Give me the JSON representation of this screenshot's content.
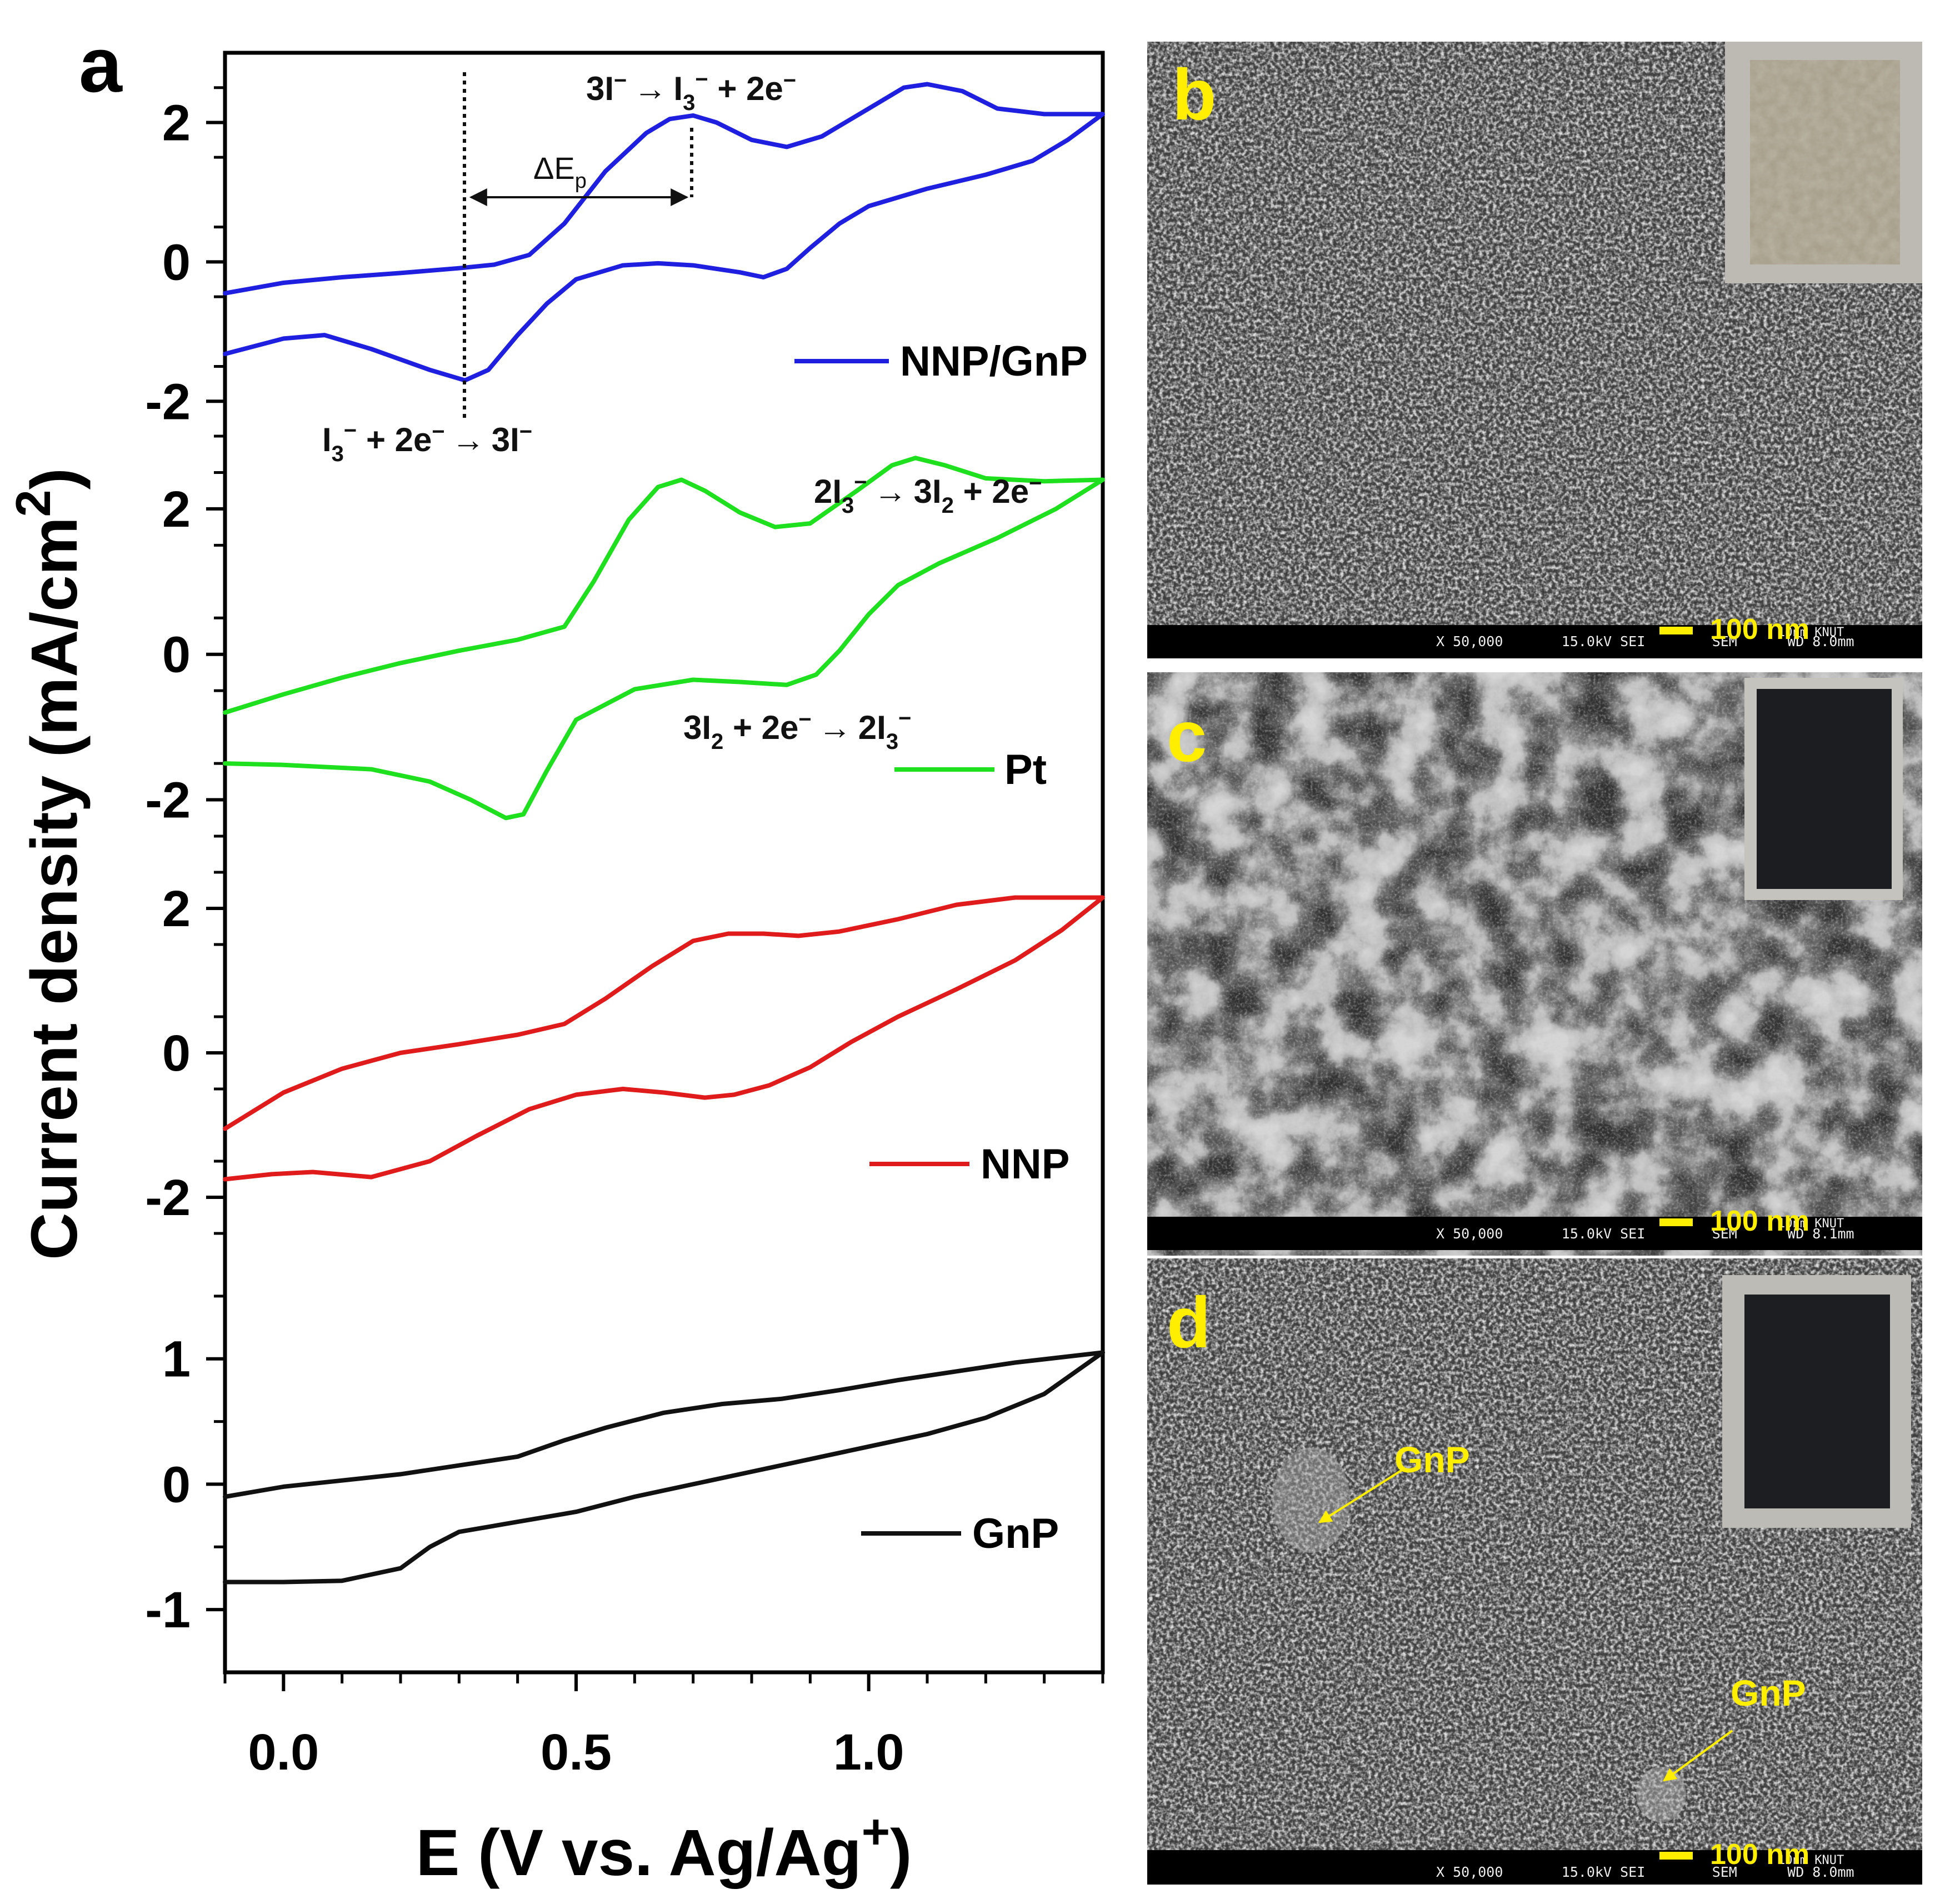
{
  "panels": {
    "a": "a",
    "b": "b",
    "c": "c",
    "d": "d"
  },
  "chart_data": {
    "type": "line",
    "xlabel_main": "E (V vs. Ag/Ag",
    "xlabel_sup": "+",
    "xlabel_end": ")",
    "ylabel_main": "Current density (mA/cm",
    "ylabel_sup": "2",
    "ylabel_end": ")",
    "xlim": [
      -0.1,
      1.4
    ],
    "x_ticks": [
      "0.0",
      "0.5",
      "1.0"
    ],
    "x_tick_values": [
      0.0,
      0.5,
      1.0
    ],
    "legend_placement": "per-curve labels at right",
    "colors": {
      "NNP/GnP": "#1f1fe0",
      "Pt": "#1ee01e",
      "NNP": "#e01b1b",
      "GnP": "#111111"
    },
    "stacks": [
      {
        "name": "NNP/GnP",
        "color": "#1f1fe0",
        "ylim": [
          -2.5,
          3.0
        ],
        "y_ticks": [
          "-2",
          "0",
          "2"
        ],
        "y_tick_values": [
          -2,
          0,
          2
        ],
        "forward": [
          [
            -0.1,
            -0.45
          ],
          [
            0.0,
            -0.3
          ],
          [
            0.1,
            -0.22
          ],
          [
            0.2,
            -0.16
          ],
          [
            0.3,
            -0.09
          ],
          [
            0.36,
            -0.04
          ],
          [
            0.42,
            0.1
          ],
          [
            0.48,
            0.55
          ],
          [
            0.55,
            1.3
          ],
          [
            0.62,
            1.85
          ],
          [
            0.66,
            2.05
          ],
          [
            0.7,
            2.1
          ],
          [
            0.74,
            2.0
          ],
          [
            0.8,
            1.75
          ],
          [
            0.86,
            1.65
          ],
          [
            0.92,
            1.8
          ],
          [
            1.0,
            2.2
          ],
          [
            1.06,
            2.5
          ],
          [
            1.1,
            2.55
          ],
          [
            1.16,
            2.45
          ],
          [
            1.22,
            2.2
          ],
          [
            1.3,
            2.12
          ],
          [
            1.4,
            2.12
          ]
        ],
        "reverse": [
          [
            1.4,
            2.12
          ],
          [
            1.34,
            1.75
          ],
          [
            1.28,
            1.45
          ],
          [
            1.2,
            1.25
          ],
          [
            1.1,
            1.05
          ],
          [
            1.0,
            0.8
          ],
          [
            0.95,
            0.55
          ],
          [
            0.9,
            0.2
          ],
          [
            0.86,
            -0.1
          ],
          [
            0.82,
            -0.22
          ],
          [
            0.78,
            -0.15
          ],
          [
            0.7,
            -0.05
          ],
          [
            0.64,
            -0.02
          ],
          [
            0.58,
            -0.05
          ],
          [
            0.5,
            -0.25
          ],
          [
            0.45,
            -0.6
          ],
          [
            0.4,
            -1.05
          ],
          [
            0.35,
            -1.55
          ],
          [
            0.31,
            -1.7
          ],
          [
            0.25,
            -1.55
          ],
          [
            0.15,
            -1.25
          ],
          [
            0.07,
            -1.05
          ],
          [
            0.0,
            -1.1
          ],
          [
            -0.1,
            -1.32
          ]
        ]
      },
      {
        "name": "Pt",
        "color": "#1ee01e",
        "ylim": [
          -2.5,
          3.0
        ],
        "y_ticks": [
          "-2",
          "0",
          "2"
        ],
        "y_tick_values": [
          -2,
          0,
          2
        ],
        "forward": [
          [
            -0.1,
            -0.8
          ],
          [
            0.0,
            -0.55
          ],
          [
            0.1,
            -0.32
          ],
          [
            0.2,
            -0.12
          ],
          [
            0.3,
            0.05
          ],
          [
            0.4,
            0.2
          ],
          [
            0.48,
            0.38
          ],
          [
            0.53,
            1.0
          ],
          [
            0.59,
            1.85
          ],
          [
            0.64,
            2.3
          ],
          [
            0.68,
            2.4
          ],
          [
            0.72,
            2.25
          ],
          [
            0.78,
            1.95
          ],
          [
            0.84,
            1.75
          ],
          [
            0.9,
            1.8
          ],
          [
            0.98,
            2.25
          ],
          [
            1.04,
            2.6
          ],
          [
            1.08,
            2.7
          ],
          [
            1.13,
            2.6
          ],
          [
            1.2,
            2.42
          ],
          [
            1.3,
            2.38
          ],
          [
            1.4,
            2.4
          ]
        ],
        "reverse": [
          [
            1.4,
            2.4
          ],
          [
            1.32,
            2.0
          ],
          [
            1.22,
            1.6
          ],
          [
            1.12,
            1.25
          ],
          [
            1.05,
            0.95
          ],
          [
            1.0,
            0.55
          ],
          [
            0.95,
            0.05
          ],
          [
            0.91,
            -0.28
          ],
          [
            0.86,
            -0.42
          ],
          [
            0.78,
            -0.38
          ],
          [
            0.7,
            -0.35
          ],
          [
            0.6,
            -0.48
          ],
          [
            0.5,
            -0.9
          ],
          [
            0.45,
            -1.6
          ],
          [
            0.41,
            -2.2
          ],
          [
            0.38,
            -2.25
          ],
          [
            0.32,
            -2.0
          ],
          [
            0.25,
            -1.75
          ],
          [
            0.15,
            -1.58
          ],
          [
            0.0,
            -1.52
          ],
          [
            -0.1,
            -1.5
          ]
        ]
      },
      {
        "name": "NNP",
        "color": "#e01b1b",
        "ylim": [
          -2.5,
          3.0
        ],
        "y_ticks": [
          "-2",
          "0",
          "2"
        ],
        "y_tick_values": [
          -2,
          0,
          2
        ],
        "forward": [
          [
            -0.1,
            -1.05
          ],
          [
            0.0,
            -0.55
          ],
          [
            0.1,
            -0.22
          ],
          [
            0.2,
            0.0
          ],
          [
            0.3,
            0.12
          ],
          [
            0.4,
            0.25
          ],
          [
            0.48,
            0.4
          ],
          [
            0.55,
            0.75
          ],
          [
            0.63,
            1.2
          ],
          [
            0.7,
            1.55
          ],
          [
            0.76,
            1.65
          ],
          [
            0.82,
            1.65
          ],
          [
            0.88,
            1.62
          ],
          [
            0.95,
            1.68
          ],
          [
            1.05,
            1.85
          ],
          [
            1.15,
            2.05
          ],
          [
            1.25,
            2.15
          ],
          [
            1.35,
            2.15
          ],
          [
            1.4,
            2.15
          ]
        ],
        "reverse": [
          [
            1.4,
            2.15
          ],
          [
            1.33,
            1.7
          ],
          [
            1.25,
            1.28
          ],
          [
            1.15,
            0.88
          ],
          [
            1.05,
            0.5
          ],
          [
            0.97,
            0.15
          ],
          [
            0.9,
            -0.2
          ],
          [
            0.83,
            -0.45
          ],
          [
            0.77,
            -0.58
          ],
          [
            0.72,
            -0.62
          ],
          [
            0.65,
            -0.55
          ],
          [
            0.58,
            -0.5
          ],
          [
            0.5,
            -0.58
          ],
          [
            0.42,
            -0.78
          ],
          [
            0.33,
            -1.15
          ],
          [
            0.25,
            -1.5
          ],
          [
            0.15,
            -1.72
          ],
          [
            0.05,
            -1.65
          ],
          [
            -0.02,
            -1.68
          ],
          [
            -0.1,
            -1.75
          ]
        ]
      },
      {
        "name": "GnP",
        "color": "#111111",
        "ylim": [
          -1.5,
          2.0
        ],
        "y_ticks": [
          "-1",
          "0",
          "1"
        ],
        "y_tick_values": [
          -1,
          0,
          1
        ],
        "forward": [
          [
            -0.1,
            -0.1
          ],
          [
            0.0,
            -0.02
          ],
          [
            0.1,
            0.03
          ],
          [
            0.2,
            0.08
          ],
          [
            0.3,
            0.15
          ],
          [
            0.4,
            0.22
          ],
          [
            0.48,
            0.35
          ],
          [
            0.55,
            0.45
          ],
          [
            0.65,
            0.57
          ],
          [
            0.75,
            0.64
          ],
          [
            0.85,
            0.68
          ],
          [
            0.95,
            0.75
          ],
          [
            1.05,
            0.83
          ],
          [
            1.15,
            0.9
          ],
          [
            1.25,
            0.97
          ],
          [
            1.4,
            1.05
          ]
        ],
        "reverse": [
          [
            1.4,
            1.05
          ],
          [
            1.3,
            0.72
          ],
          [
            1.2,
            0.53
          ],
          [
            1.1,
            0.4
          ],
          [
            1.0,
            0.3
          ],
          [
            0.9,
            0.2
          ],
          [
            0.8,
            0.1
          ],
          [
            0.7,
            0.0
          ],
          [
            0.6,
            -0.1
          ],
          [
            0.5,
            -0.22
          ],
          [
            0.4,
            -0.3
          ],
          [
            0.3,
            -0.38
          ],
          [
            0.25,
            -0.5
          ],
          [
            0.2,
            -0.67
          ],
          [
            0.1,
            -0.77
          ],
          [
            0.0,
            -0.78
          ],
          [
            -0.1,
            -0.78
          ]
        ]
      }
    ],
    "legend": [
      {
        "name": "NNP/GnP",
        "label": "NNP/GnP"
      },
      {
        "name": "Pt",
        "label": "Pt"
      },
      {
        "name": "NNP",
        "label": "NNP"
      },
      {
        "name": "GnP",
        "label": "GnP"
      }
    ],
    "annotations": {
      "ox1_pre": "3I",
      "ox1_post": " + 2e",
      "ox1_sub3": "3",
      "red1_pre": "I",
      "red1_mid": " + 2e",
      "red1_post": "3I",
      "dep_main": "ΔE",
      "dep_sub": "p",
      "ox2_a": "2I",
      "ox2_b": "3I",
      "ox2_c": " + 2e",
      "ox2_sub3": "3",
      "ox2_sub2": "2",
      "red2_a": "3I",
      "red2_b": " + 2e",
      "red2_c": "2I",
      "red2_sub2": "2",
      "red2_sub3": "3",
      "minus": "−",
      "arrow": "→"
    }
  },
  "sem": [
    {
      "panel": "b",
      "scale": "100 nm",
      "info": "X 50,000       15.0kV SEI        SEM      WD 8.0mm",
      "corner": "10nm KNUT",
      "texture": "fine-grain",
      "inset_color": "#a39b86"
    },
    {
      "panel": "c",
      "scale": "100 nm",
      "info": "X 50,000       15.0kV SEI        SEM      WD 8.1mm",
      "corner": "10nm KNUT",
      "texture": "agglomerate",
      "inset_color": "#1b1d20"
    },
    {
      "panel": "d",
      "scale": "100 nm",
      "info": "X 50,000       15.0kV SEI        SEM      WD 8.0mm",
      "corner": "10nm KNUT",
      "texture": "fine-grain",
      "inset_color": "#1d1e22",
      "labels": [
        {
          "text": "GnP"
        },
        {
          "text": "GnP"
        }
      ]
    }
  ],
  "colors": {
    "sem_label": "#ffee00",
    "scale_bar": "#ffee00"
  }
}
